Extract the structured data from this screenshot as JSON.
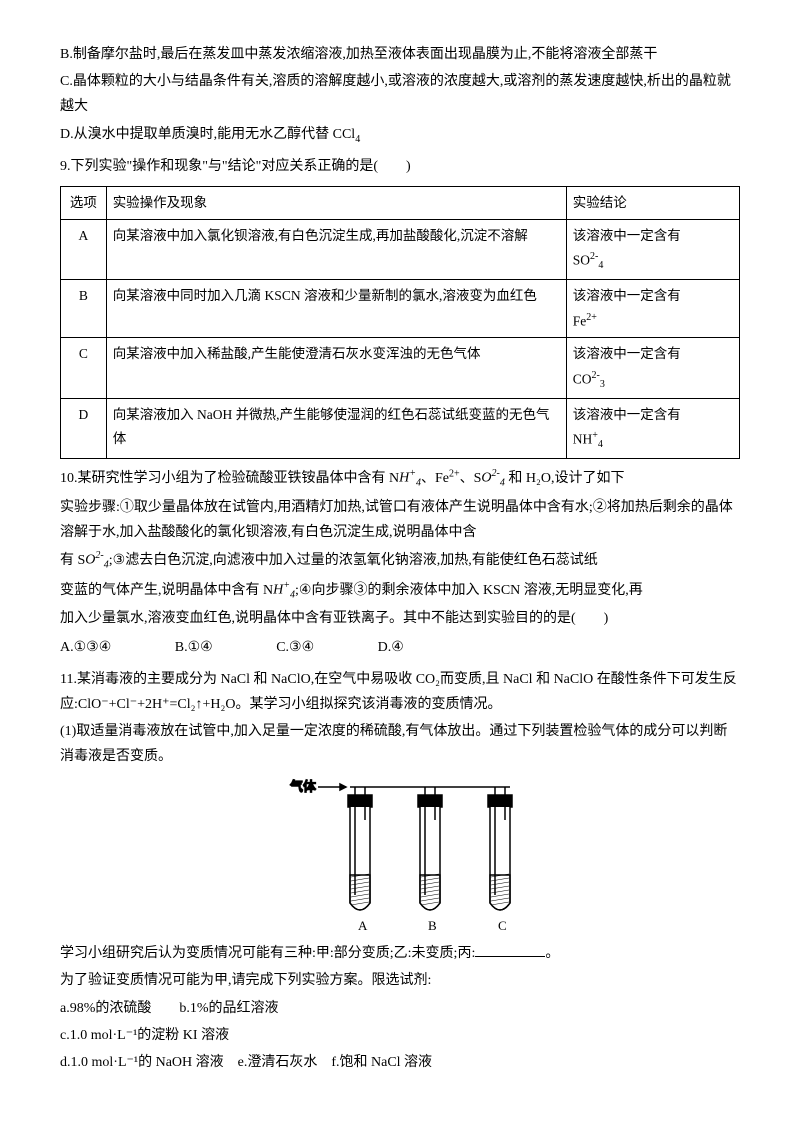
{
  "lines": {
    "b": "B.制备摩尔盐时,最后在蒸发皿中蒸发浓缩溶液,加热至液体表面出现晶膜为止,不能将溶液全部蒸干",
    "c": "C.晶体颗粒的大小与结晶条件有关,溶质的溶解度越小,或溶液的浓度越大,或溶剂的蒸发速度越快,析出的晶粒就越大",
    "d_pre": "D.从溴水中提取单质溴时,能用无水乙醇代替 CCl",
    "d_sub": "4"
  },
  "q9": {
    "stem": "9.下列实验\"操作和现象\"与\"结论\"对应关系正确的是(　　)",
    "head": {
      "opt": "选项",
      "op": "实验操作及现象",
      "res": "实验结论"
    },
    "rows": [
      {
        "opt": "A",
        "op": "向某溶液中加入氯化钡溶液,有白色沉淀生成,再加盐酸酸化,沉淀不溶解",
        "res_pre": "该溶液中一定含有",
        "res_ion": "SO",
        "res_charge": "2-",
        "res_sub": "4"
      },
      {
        "opt": "B",
        "op": "向某溶液中同时加入几滴 KSCN 溶液和少量新制的氯水,溶液变为血红色",
        "res_pre": "该溶液中一定含有",
        "res_ion": "Fe",
        "res_charge": "2+",
        "res_sub": ""
      },
      {
        "opt": "C",
        "op": "向某溶液中加入稀盐酸,产生能使澄清石灰水变浑浊的无色气体",
        "res_pre": "该溶液中一定含有",
        "res_ion": "CO",
        "res_charge": "2-",
        "res_sub": "3"
      },
      {
        "opt": "D",
        "op": "向某溶液加入 NaOH 并微热,产生能够使湿润的红色石蕊试纸变蓝的无色气体",
        "res_pre": "该溶液中一定含有",
        "res_ion": "NH",
        "res_charge": "+",
        "res_sub": "4"
      }
    ]
  },
  "q10": {
    "p1a": "10.某研究性学习小组为了检验硫酸亚铁铵晶体中含有 N",
    "nh4_H": "H",
    "nh4_sup": "+",
    "nh4_sub": "4",
    "p1b": "、Fe",
    "fe_sup": "2+",
    "p1c": "、S",
    "so4_O": "O",
    "so4_sup": "2-",
    "so4_sub": "4",
    "p1d": " 和 H₂O,设计了如下",
    "p2": "实验步骤:①取少量晶体放在试管内,用酒精灯加热,试管口有液体产生说明晶体中含有水;②将加热后剩余的晶体溶解于水,加入盐酸酸化的氯化钡溶液,有白色沉淀生成,说明晶体中含",
    "p3a": "有 S",
    "p3b": ";③滤去白色沉淀,向滤液中加入过量的浓氢氧化钠溶液,加热,有能使红色石蕊试纸",
    "p4a": "变蓝的气体产生,说明晶体中含有 N",
    "p4b": ";④向步骤③的剩余液体中加入 KSCN 溶液,无明显变化,再",
    "p5": "加入少量氯水,溶液变血红色,说明晶体中含有亚铁离子。其中不能达到实验目的的是(　　)",
    "choices": {
      "a": "A.①③④",
      "b": "B.①④",
      "c": "C.③④",
      "d": "D.④"
    }
  },
  "q11": {
    "p1": "11.某消毒液的主要成分为 NaCl 和 NaClO,在空气中易吸收 CO₂而变质,且 NaCl 和 NaClO 在酸性条件下可发生反应:ClO⁻+Cl⁻+2H⁺=Cl₂↑+H₂O。某学习小组拟探究该消毒液的变质情况。",
    "p2": "(1)取适量消毒液放在试管中,加入足量一定浓度的稀硫酸,有气体放出。通过下列装置检验气体的成分可以判断消毒液是否变质。",
    "gas_label": "气体",
    "tube_labels": [
      "A",
      "B",
      "C"
    ],
    "p3a": "学习小组研究后认为变质情况可能有三种:甲:部分变质;乙:未变质;丙:",
    "p3b": "。",
    "p4": "为了验证变质情况可能为甲,请完成下列实验方案。限选试剂:",
    "reagents": [
      "a.98%的浓硫酸　　b.1%的品红溶液",
      "c.1.0 mol·L⁻¹的淀粉 KI 溶液",
      "d.1.0 mol·L⁻¹的 NaOH 溶液　e.澄清石灰水　f.饱和 NaCl 溶液"
    ]
  },
  "diagram": {
    "stroke": "#000000",
    "tube_fill": "#ffffff"
  }
}
